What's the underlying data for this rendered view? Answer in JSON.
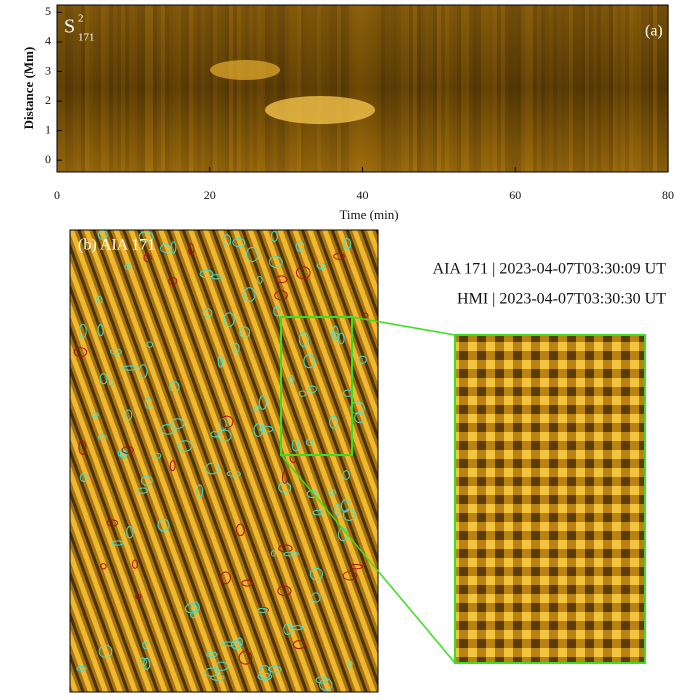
{
  "panel_a": {
    "label": "(a)",
    "title_main": "S",
    "title_sup": "2",
    "title_sub": "171",
    "x_label": "Time (min)",
    "y_label": "Distance (Mm)",
    "xlim": [
      0,
      80
    ],
    "xticks": [
      0,
      20,
      40,
      60,
      80
    ],
    "ylim": [
      -0.4,
      5.25
    ],
    "yticks": [
      0,
      1,
      2,
      3,
      4,
      5
    ]
  },
  "panel_b": {
    "label": "(b)  AIA 171",
    "annotations": [
      "AIA 171 | 2023-04-07T03:30:09 UT",
      "HMI   | 2023-04-07T03:30:30 UT"
    ]
  }
}
